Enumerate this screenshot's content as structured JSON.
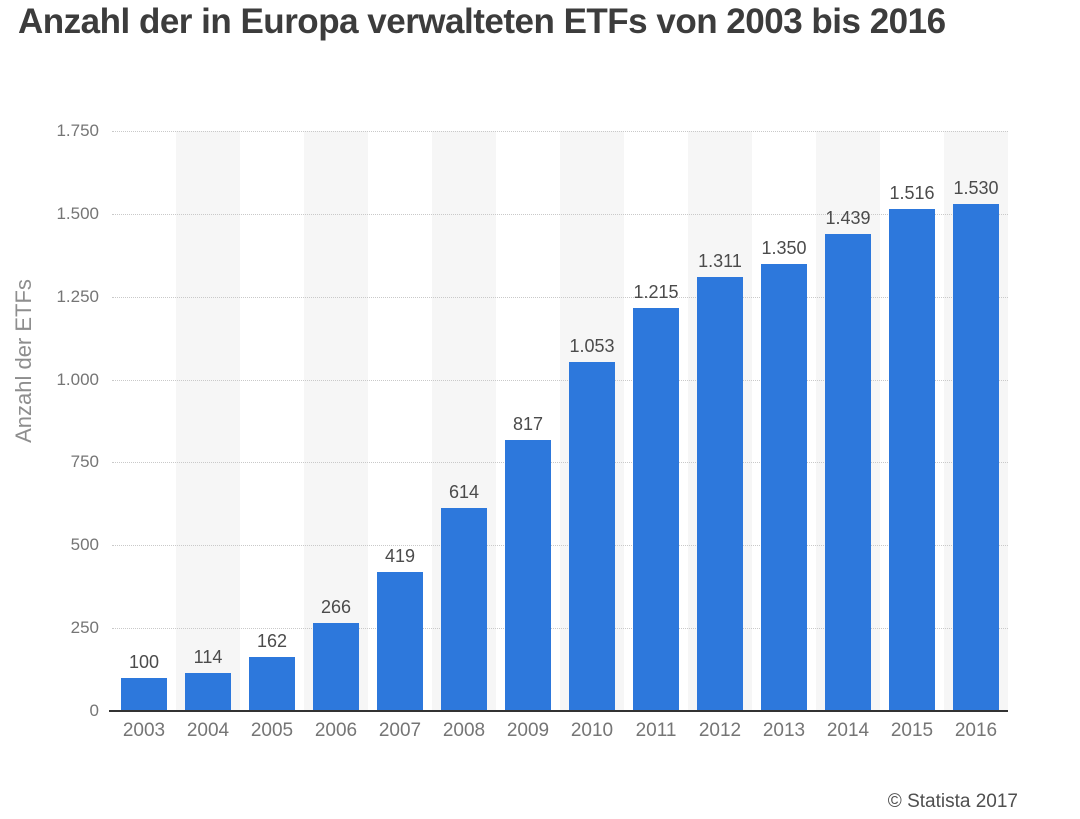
{
  "title": "Anzahl der in Europa verwalteten ETFs von 2003 bis 2016",
  "footer": {
    "copyright": "© Statista 2017"
  },
  "chart_data": {
    "type": "bar",
    "title": "Anzahl der in Europa verwalteten ETFs von 2003 bis 2016",
    "categories": [
      "2003",
      "2004",
      "2005",
      "2006",
      "2007",
      "2008",
      "2009",
      "2010",
      "2011",
      "2012",
      "2013",
      "2014",
      "2015",
      "2016"
    ],
    "values": [
      100,
      114,
      162,
      266,
      419,
      614,
      817,
      1053,
      1215,
      1311,
      1350,
      1439,
      1516,
      1530
    ],
    "value_labels": [
      "100",
      "114",
      "162",
      "266",
      "419",
      "614",
      "817",
      "1.053",
      "1.215",
      "1.311",
      "1.350",
      "1.439",
      "1.516",
      "1.530"
    ],
    "xlabel": "",
    "ylabel": "Anzahl der ETFs",
    "ylim": [
      0,
      1750
    ],
    "ytick_interval": 250,
    "ytick_labels": [
      "0",
      "250",
      "500",
      "750",
      "1.000",
      "1.250",
      "1.500",
      "1.750"
    ],
    "grid": "horizontal dotted",
    "legend": "none",
    "colors": {
      "bar": "#2d78dc",
      "column_band": "#f6f6f6",
      "gridline": "#c9c9c9",
      "axis_line": "#333333",
      "tick_text": "#757575",
      "value_text": "#4b4b4b",
      "ylabel_text": "#8e8e8e",
      "title_text": "#3c3c3c"
    }
  }
}
